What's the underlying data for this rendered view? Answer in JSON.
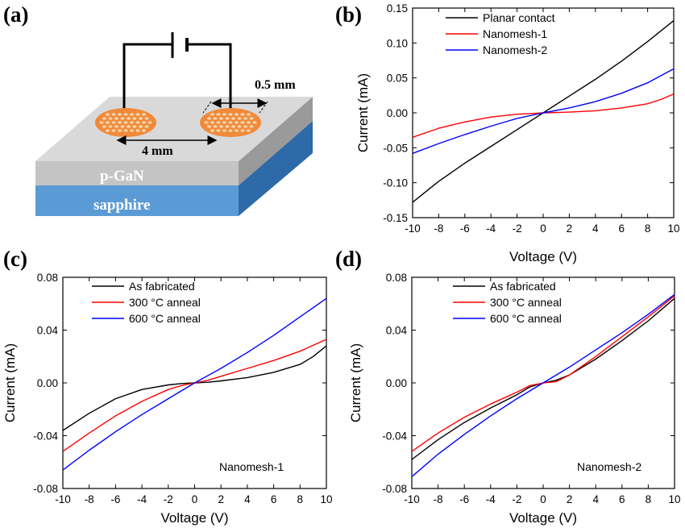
{
  "panels": {
    "a": {
      "label": "(a)"
    },
    "b": {
      "label": "(b)"
    },
    "c": {
      "label": "(c)"
    },
    "d": {
      "label": "(d)"
    }
  },
  "schematic": {
    "dim_width": "0.5 mm",
    "dim_gap": "4 mm",
    "layer_top": "p-GaN",
    "layer_bottom": "sapphire",
    "colors": {
      "electrode": "#f08a3a",
      "electrode_holes": "#f7d2a6",
      "gan_top": "#d9d9d9",
      "gan_front": "#c4c4c4",
      "gan_side": "#9a9a9a",
      "sapphire_front": "#5b9bd5",
      "sapphire_side": "#2e6aa8"
    }
  },
  "chart_data": [
    {
      "id": "b",
      "type": "line",
      "title": "",
      "xlabel": "Voltage (V)",
      "ylabel": "Current (mA)",
      "xlim": [
        -10,
        10
      ],
      "ylim": [
        -0.15,
        0.15
      ],
      "xticks": [
        "-10",
        "-8",
        "-6",
        "-4",
        "-2",
        "0",
        "2",
        "4",
        "6",
        "8",
        "10"
      ],
      "yticks": [
        "-0.15",
        "-0.10",
        "-0.05",
        "0.00",
        "0.05",
        "0.10",
        "0.15"
      ],
      "legend_position": "top-left",
      "annotation": "",
      "series": [
        {
          "name": "Planar contact",
          "color": "#000000",
          "x": [
            -10,
            -8,
            -6,
            -4,
            -2,
            0,
            2,
            4,
            6,
            8,
            10
          ],
          "y": [
            -0.128,
            -0.098,
            -0.072,
            -0.048,
            -0.024,
            0.0,
            0.024,
            0.048,
            0.074,
            0.102,
            0.132
          ]
        },
        {
          "name": "Nanomesh-1",
          "color": "#ff0000",
          "x": [
            -10,
            -8,
            -6,
            -4,
            -2,
            -1,
            0,
            1,
            2,
            4,
            6,
            8,
            9,
            10
          ],
          "y": [
            -0.035,
            -0.022,
            -0.013,
            -0.006,
            -0.002,
            -0.001,
            0.0,
            0.0005,
            0.001,
            0.003,
            0.007,
            0.013,
            0.019,
            0.027
          ]
        },
        {
          "name": "Nanomesh-2",
          "color": "#0000ff",
          "x": [
            -10,
            -8,
            -6,
            -4,
            -2,
            0,
            2,
            4,
            6,
            8,
            10
          ],
          "y": [
            -0.058,
            -0.044,
            -0.031,
            -0.019,
            -0.008,
            0.0,
            0.007,
            0.016,
            0.028,
            0.043,
            0.063
          ]
        }
      ]
    },
    {
      "id": "c",
      "type": "line",
      "title": "",
      "xlabel": "Voltage (V)",
      "ylabel": "Current (mA)",
      "xlim": [
        -10,
        10
      ],
      "ylim": [
        -0.08,
        0.08
      ],
      "xticks": [
        "-10",
        "-8",
        "-6",
        "-4",
        "-2",
        "0",
        "2",
        "4",
        "6",
        "8",
        "10"
      ],
      "yticks": [
        "-0.08",
        "-0.04",
        "0.00",
        "0.04",
        "0.08"
      ],
      "legend_position": "top-left",
      "annotation": "Nanomesh-1",
      "series": [
        {
          "name": "As fabricated",
          "color": "#000000",
          "x": [
            -10,
            -8,
            -6,
            -4,
            -2,
            -1,
            0,
            1,
            2,
            4,
            6,
            8,
            9,
            10
          ],
          "y": [
            -0.036,
            -0.023,
            -0.012,
            -0.005,
            -0.0015,
            -0.0005,
            0.0,
            0.0005,
            0.0015,
            0.004,
            0.008,
            0.014,
            0.02,
            0.028
          ]
        },
        {
          "name": "300 °C anneal",
          "color": "#ff0000",
          "x": [
            -10,
            -8,
            -6,
            -4,
            -2,
            -1,
            0,
            1,
            2,
            4,
            6,
            8,
            10
          ],
          "y": [
            -0.052,
            -0.038,
            -0.025,
            -0.014,
            -0.005,
            -0.002,
            0.0,
            0.002,
            0.005,
            0.011,
            0.017,
            0.024,
            0.033
          ]
        },
        {
          "name": "600 °C anneal",
          "color": "#0000ff",
          "x": [
            -10,
            -8,
            -6,
            -4,
            -2,
            0,
            2,
            4,
            6,
            8,
            10
          ],
          "y": [
            -0.066,
            -0.051,
            -0.037,
            -0.024,
            -0.012,
            0.0,
            0.011,
            0.023,
            0.036,
            0.05,
            0.064
          ]
        }
      ]
    },
    {
      "id": "d",
      "type": "line",
      "title": "",
      "xlabel": "Voltage (V)",
      "ylabel": "Current (mA)",
      "xlim": [
        -10,
        10
      ],
      "ylim": [
        -0.08,
        0.08
      ],
      "xticks": [
        "-10",
        "-8",
        "-6",
        "-4",
        "-2",
        "0",
        "2",
        "4",
        "6",
        "8",
        "10"
      ],
      "yticks": [
        "-0.08",
        "-0.04",
        "0.00",
        "0.04",
        "0.08"
      ],
      "legend_position": "top-left",
      "annotation": "Nanomesh-2",
      "series": [
        {
          "name": "As fabricated",
          "color": "#000000",
          "x": [
            -10,
            -8,
            -6,
            -4,
            -2,
            -1,
            0,
            1,
            2,
            4,
            6,
            8,
            10
          ],
          "y": [
            -0.058,
            -0.043,
            -0.03,
            -0.019,
            -0.009,
            -0.003,
            0.0,
            0.002,
            0.006,
            0.018,
            0.032,
            0.047,
            0.064
          ]
        },
        {
          "name": "300 °C anneal",
          "color": "#ff0000",
          "x": [
            -10,
            -8,
            -6,
            -4,
            -2,
            -1,
            0,
            1,
            2,
            4,
            6,
            8,
            10
          ],
          "y": [
            -0.052,
            -0.038,
            -0.026,
            -0.016,
            -0.007,
            -0.002,
            0.0,
            0.001,
            0.006,
            0.02,
            0.035,
            0.05,
            0.066
          ]
        },
        {
          "name": "600 °C anneal",
          "color": "#0000ff",
          "x": [
            -10,
            -8,
            -6,
            -4,
            -2,
            0,
            2,
            4,
            6,
            8,
            10
          ],
          "y": [
            -0.071,
            -0.054,
            -0.039,
            -0.025,
            -0.012,
            0.0,
            0.012,
            0.025,
            0.038,
            0.052,
            0.067
          ]
        }
      ]
    }
  ]
}
